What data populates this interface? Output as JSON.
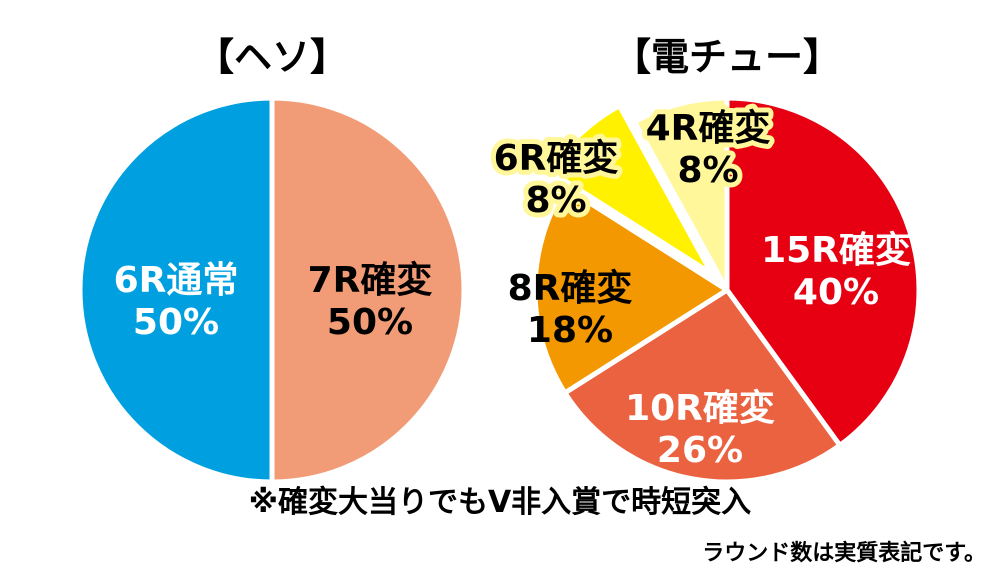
{
  "chart_data": [
    {
      "type": "pie",
      "title": "【ヘソ】",
      "slices": [
        {
          "label": "7R確変",
          "value": 50,
          "value_label": "50%",
          "color": "#f19c76",
          "text_color": "#000000"
        },
        {
          "label": "6R通常",
          "value": 50,
          "value_label": "50%",
          "color": "#00a0e0",
          "text_color": "#ffffff"
        }
      ]
    },
    {
      "type": "pie",
      "title": "【電チュー】",
      "slices": [
        {
          "label": "15R確変",
          "value": 40,
          "value_label": "40%",
          "color": "#e60012",
          "text_color": "#ffffff"
        },
        {
          "label": "10R確変",
          "value": 26,
          "value_label": "26%",
          "color": "#eb6240",
          "text_color": "#ffffff"
        },
        {
          "label": "8R確変",
          "value": 18,
          "value_label": "18%",
          "color": "#f39800",
          "text_color": "#000000"
        },
        {
          "label": "6R確変",
          "value": 8,
          "value_label": "8%",
          "color": "#fff100",
          "text_color": "#000000"
        },
        {
          "label": "4R確変",
          "value": 8,
          "value_label": "8%",
          "color": "#fff799",
          "text_color": "#000000"
        }
      ]
    }
  ],
  "notes": {
    "main": "※確変大当りでもV非入賞で時短突入",
    "sub": "ラウンド数は実質表記です。"
  }
}
